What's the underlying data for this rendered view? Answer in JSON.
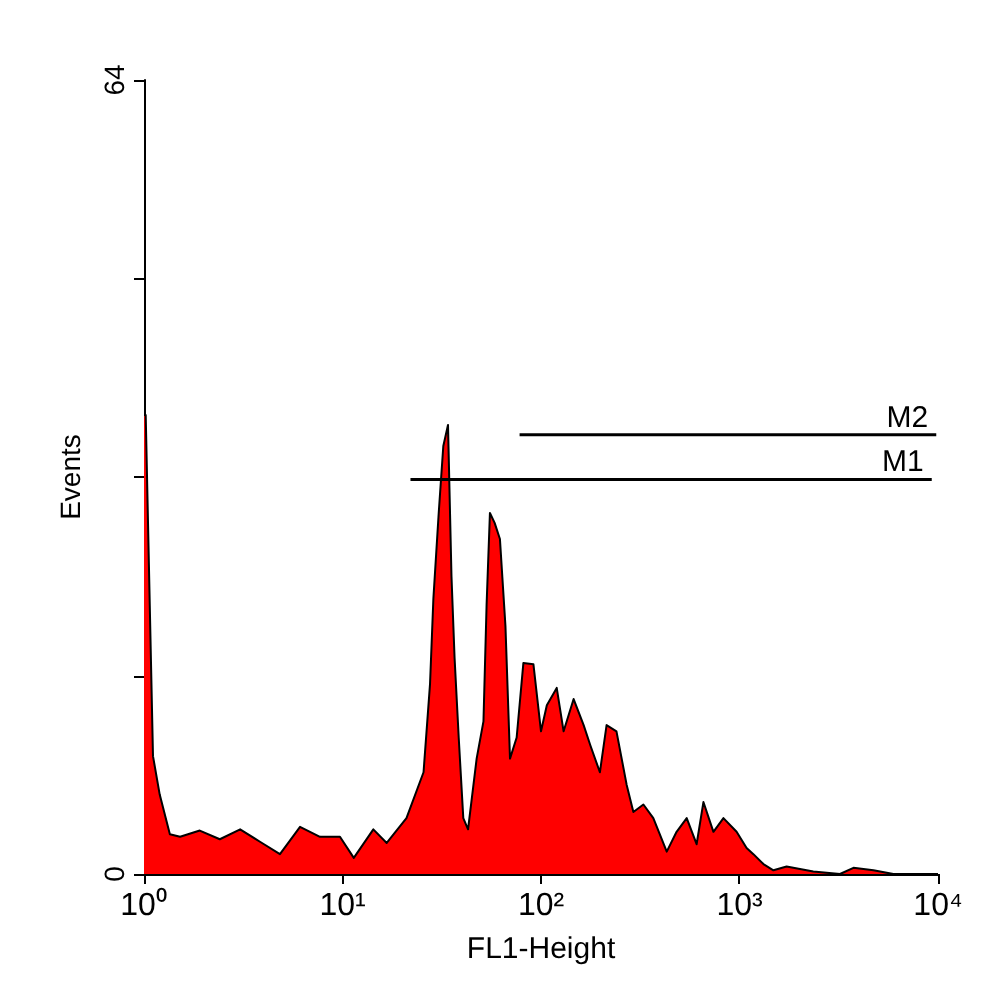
{
  "chart_data": {
    "type": "area",
    "xlabel": "FL1-Height",
    "ylabel": "Events",
    "log": "x",
    "grid": false,
    "xlim": [
      1,
      10000
    ],
    "xticks": [
      {
        "value": 1,
        "label": "10⁰"
      },
      {
        "value": 10,
        "label": "10¹"
      },
      {
        "value": 100,
        "label": "10²"
      },
      {
        "value": 1000,
        "label": "10³"
      },
      {
        "value": 10000,
        "label": "10⁴"
      }
    ],
    "ylim": [
      0,
      64
    ],
    "yticks": [
      0,
      {
        "value": 16,
        "label": null
      },
      {
        "value": 32,
        "label": null
      },
      {
        "value": 48,
        "label": null
      },
      64
    ],
    "x": [
      1,
      1.02,
      1.11,
      1.2,
      1.35,
      1.52,
      1.91,
      2.41,
      3.05,
      3.84,
      4.84,
      6.11,
      7.7,
      9.71,
      11.4,
      14.3,
      16.7,
      21,
      25.6,
      27.6,
      28.7,
      30.5,
      32.2,
      34,
      35.4,
      36.7,
      38.5,
      40.6,
      42.9,
      47.4,
      51.3,
      53.2,
      55.3,
      58.4,
      62.1,
      66.2,
      69.8,
      75.4,
      81.5,
      91.6,
      100,
      107,
      120,
      130,
      146,
      164,
      177,
      198,
      214,
      240,
      270,
      292,
      328,
      368,
      430,
      482,
      542,
      608,
      658,
      739,
      830,
      967,
      1086,
      1175,
      1320,
      1482,
      1727,
      2354,
      3207,
      3750,
      4730,
      5960,
      6950,
      10000
    ],
    "series": [
      {
        "color": "#ff0000",
        "values": [
          37,
          37,
          9.5,
          6.4,
          3.2,
          3,
          3.5,
          2.8,
          3.6,
          2.6,
          1.6,
          3.8,
          3,
          3,
          1.3,
          3.6,
          2.5,
          4.5,
          8.2,
          15.3,
          22.2,
          29,
          34.5,
          36.2,
          24,
          17.4,
          11,
          4.5,
          3.6,
          9.3,
          12.3,
          21.7,
          29.1,
          28.3,
          27,
          20,
          9.3,
          11,
          17,
          16.9,
          11.5,
          13.6,
          15,
          11.5,
          14.1,
          12,
          10.4,
          8.2,
          12,
          11.5,
          7.2,
          5,
          5.6,
          4.5,
          1.8,
          3.4,
          4.5,
          2.4,
          5.8,
          3.4,
          4.5,
          3.4,
          2.1,
          1.6,
          0.8,
          0.3,
          0.6,
          0.2,
          0,
          0.5,
          0.3,
          0,
          0,
          0
        ]
      },
      {
        "type": "line",
        "color": "#000000",
        "x": [
          22,
          9300
        ],
        "values": [
          31.8,
          31.8
        ]
      },
      {
        "type": "line",
        "color": "#000000",
        "x": [
          78,
          9800
        ],
        "values": [
          35.4,
          35.4
        ]
      }
    ],
    "annotations": [
      {
        "text": "M1",
        "x": 9300,
        "y": 31.8
      },
      {
        "text": "M2",
        "x": 9800,
        "y": 35.4
      }
    ],
    "marker": "none"
  }
}
